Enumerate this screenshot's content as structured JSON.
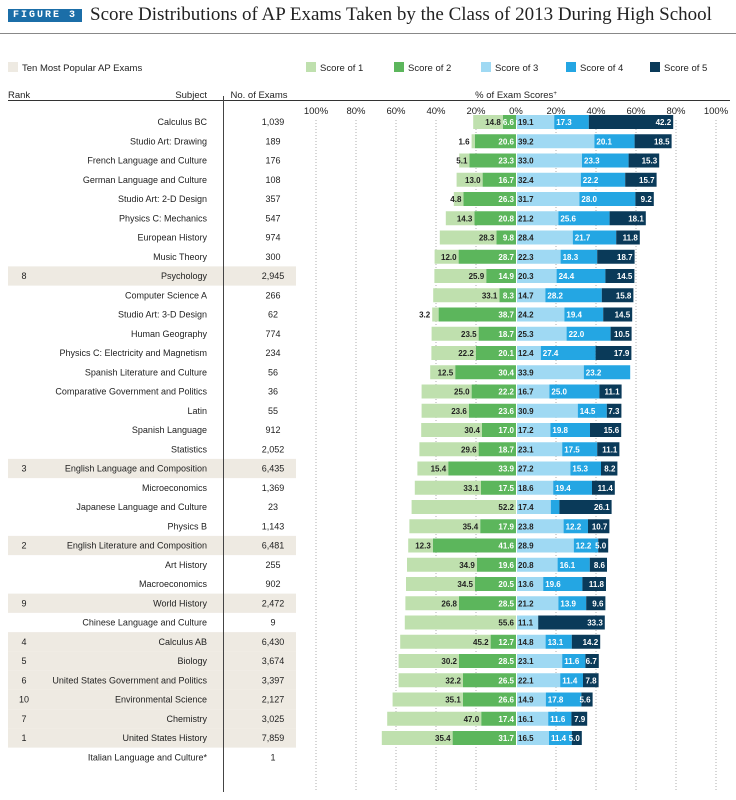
{
  "figure_label": "FIGURE 3",
  "title": "Score Distributions of AP Exams Taken by the Class of 2013 During High School",
  "legend": {
    "popular_label": "Ten Most Popular AP Exams",
    "popular_color": "#eeeae2",
    "items": [
      {
        "label": "Score of 1",
        "color": "#bfe0ae"
      },
      {
        "label": "Score of 2",
        "color": "#5cb65c"
      },
      {
        "label": "Score of 3",
        "color": "#9fd9f3"
      },
      {
        "label": "Score of 4",
        "color": "#24a6e3"
      },
      {
        "label": "Score of 5",
        "color": "#0a3a59"
      }
    ]
  },
  "headers": {
    "rank": "Rank",
    "subject": "Subject",
    "exams": "No. of Exams",
    "pct": "% of Exam Scores",
    "pct_sup": "+"
  },
  "chart_data": {
    "type": "bar",
    "orientation": "horizontal-diverging",
    "xlim": [
      -100,
      100
    ],
    "tick_labels": [
      "100%",
      "80%",
      "60%",
      "40%",
      "20%",
      "0%",
      "20%",
      "40%",
      "60%",
      "80%",
      "100%"
    ],
    "rows": [
      {
        "rank": "",
        "subject": "Calculus BC",
        "exams": "1,039",
        "s1": 14.8,
        "s2": 6.6,
        "s3": 19.1,
        "s4": 17.3,
        "s5": 42.2
      },
      {
        "rank": "",
        "subject": "Studio Art: Drawing",
        "exams": "189",
        "s1": 1.6,
        "s2": 20.6,
        "s3": 39.2,
        "s4": 20.1,
        "s5": 18.5
      },
      {
        "rank": "",
        "subject": "French Language and Culture",
        "exams": "176",
        "s1": 5.1,
        "s2": 23.3,
        "s3": 33.0,
        "s4": 23.3,
        "s5": 15.3
      },
      {
        "rank": "",
        "subject": "German Language and Culture",
        "exams": "108",
        "s1": 13.0,
        "s2": 16.7,
        "s3": 32.4,
        "s4": 22.2,
        "s5": 15.7
      },
      {
        "rank": "",
        "subject": "Studio Art: 2-D Design",
        "exams": "357",
        "s1": 4.8,
        "s2": 26.3,
        "s3": 31.7,
        "s4": 28.0,
        "s5": 9.2
      },
      {
        "rank": "",
        "subject": "Physics C: Mechanics",
        "exams": "547",
        "s1": 14.3,
        "s2": 20.8,
        "s3": 21.2,
        "s4": 25.6,
        "s5": 18.1
      },
      {
        "rank": "",
        "subject": "European History",
        "exams": "974",
        "s1": 28.3,
        "s2": 9.8,
        "s3": 28.4,
        "s4": 21.7,
        "s5": 11.8
      },
      {
        "rank": "",
        "subject": "Music Theory",
        "exams": "300",
        "s1": 12.0,
        "s2": 28.7,
        "s3": 22.3,
        "s4": 18.3,
        "s5": 18.7
      },
      {
        "rank": "8",
        "subject": "Psychology",
        "exams": "2,945",
        "s1": 25.9,
        "s2": 14.9,
        "s3": 20.3,
        "s4": 24.4,
        "s5": 14.5
      },
      {
        "rank": "",
        "subject": "Computer Science A",
        "exams": "266",
        "s1": 33.1,
        "s2": 8.3,
        "s3": 14.7,
        "s4": 28.2,
        "s5": 15.8
      },
      {
        "rank": "",
        "subject": "Studio Art: 3-D Design",
        "exams": "62",
        "s1": 3.2,
        "s2": 38.7,
        "s3": 24.2,
        "s4": 19.4,
        "s5": 14.5
      },
      {
        "rank": "",
        "subject": "Human Geography",
        "exams": "774",
        "s1": 23.5,
        "s2": 18.7,
        "s3": 25.3,
        "s4": 22.0,
        "s5": 10.5
      },
      {
        "rank": "",
        "subject": "Physics C: Electricity and Magnetism",
        "exams": "234",
        "s1": 22.2,
        "s2": 20.1,
        "s3": 12.4,
        "s4": 27.4,
        "s5": 17.9
      },
      {
        "rank": "",
        "subject": "Spanish Literature and Culture",
        "exams": "56",
        "s1": 12.5,
        "s2": 30.4,
        "s3": 33.9,
        "s4": 23.2,
        "s5": null
      },
      {
        "rank": "",
        "subject": "Comparative Government and Politics",
        "exams": "36",
        "s1": 25.0,
        "s2": 22.2,
        "s3": 16.7,
        "s4": 25.0,
        "s5": 11.1
      },
      {
        "rank": "",
        "subject": "Latin",
        "exams": "55",
        "s1": 23.6,
        "s2": 23.6,
        "s3": 30.9,
        "s4": 14.5,
        "s5": 7.3
      },
      {
        "rank": "",
        "subject": "Spanish Language",
        "exams": "912",
        "s1": 30.4,
        "s2": 17.0,
        "s3": 17.2,
        "s4": 19.8,
        "s5": 15.6
      },
      {
        "rank": "",
        "subject": "Statistics",
        "exams": "2,052",
        "s1": 29.6,
        "s2": 18.7,
        "s3": 23.1,
        "s4": 17.5,
        "s5": 11.1
      },
      {
        "rank": "3",
        "subject": "English Language and Composition",
        "exams": "6,435",
        "s1": 15.4,
        "s2": 33.9,
        "s3": 27.2,
        "s4": 15.3,
        "s5": 8.2
      },
      {
        "rank": "",
        "subject": "Microeconomics",
        "exams": "1,369",
        "s1": 33.1,
        "s2": 17.5,
        "s3": 18.6,
        "s4": 19.4,
        "s5": 11.4
      },
      {
        "rank": "",
        "subject": "Japanese Language and Culture",
        "exams": "23",
        "s1": 52.2,
        "s2": null,
        "s3": 17.4,
        "s4": 4.3,
        "s5": 26.1
      },
      {
        "rank": "",
        "subject": "Physics B",
        "exams": "1,143",
        "s1": 35.4,
        "s2": 17.9,
        "s3": 23.8,
        "s4": 12.2,
        "s5": 10.7
      },
      {
        "rank": "2",
        "subject": "English Literature and Composition",
        "exams": "6,481",
        "s1": 12.3,
        "s2": 41.6,
        "s3": 28.9,
        "s4": 12.2,
        "s5": 5.0
      },
      {
        "rank": "",
        "subject": "Art History",
        "exams": "255",
        "s1": 34.9,
        "s2": 19.6,
        "s3": 20.8,
        "s4": 16.1,
        "s5": 8.6
      },
      {
        "rank": "",
        "subject": "Macroeconomics",
        "exams": "902",
        "s1": 34.5,
        "s2": 20.5,
        "s3": 13.6,
        "s4": 19.6,
        "s5": 11.8
      },
      {
        "rank": "9",
        "subject": "World History",
        "exams": "2,472",
        "s1": 26.8,
        "s2": 28.5,
        "s3": 21.2,
        "s4": 13.9,
        "s5": 9.6
      },
      {
        "rank": "",
        "subject": "Chinese Language and Culture",
        "exams": "9",
        "s1": 55.6,
        "s2": null,
        "s3": 11.1,
        "s4": null,
        "s5": 33.3
      },
      {
        "rank": "4",
        "subject": "Calculus AB",
        "exams": "6,430",
        "s1": 45.2,
        "s2": 12.7,
        "s3": 14.8,
        "s4": 13.1,
        "s5": 14.2
      },
      {
        "rank": "5",
        "subject": "Biology",
        "exams": "3,674",
        "s1": 30.2,
        "s2": 28.5,
        "s3": 23.1,
        "s4": 11.6,
        "s5": 6.7
      },
      {
        "rank": "6",
        "subject": "United States Government and Politics",
        "exams": "3,397",
        "s1": 32.2,
        "s2": 26.5,
        "s3": 22.1,
        "s4": 11.4,
        "s5": 7.8
      },
      {
        "rank": "10",
        "subject": "Environmental Science",
        "exams": "2,127",
        "s1": 35.1,
        "s2": 26.6,
        "s3": 14.9,
        "s4": 17.8,
        "s5": 5.6
      },
      {
        "rank": "7",
        "subject": "Chemistry",
        "exams": "3,025",
        "s1": 47.0,
        "s2": 17.4,
        "s3": 16.1,
        "s4": 11.6,
        "s5": 7.9
      },
      {
        "rank": "1",
        "subject": "United States History",
        "exams": "7,859",
        "s1": 35.4,
        "s2": 31.7,
        "s3": 16.5,
        "s4": 11.4,
        "s5": 5.0
      },
      {
        "rank": "",
        "subject": "Italian Language and Culture*",
        "exams": "1",
        "s1": null,
        "s2": null,
        "s3": null,
        "s4": null,
        "s5": null
      }
    ]
  }
}
